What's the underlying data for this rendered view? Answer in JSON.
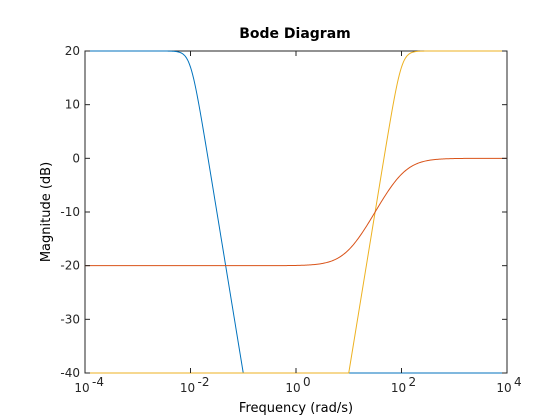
{
  "chart_data": {
    "type": "line",
    "title": "Bode Diagram",
    "xlabel": "Frequency  (rad/s)",
    "ylabel": "Magnitude (dB)",
    "xscale": "log",
    "xlim_exp": [
      -4,
      4
    ],
    "ylim": [
      -40,
      20
    ],
    "grid": false,
    "x_tick_exponents": [
      -4,
      -2,
      0,
      2,
      4
    ],
    "x_tick_base": "10",
    "y_ticks": [
      -40,
      -30,
      -20,
      -10,
      0,
      10,
      20
    ],
    "series": [
      {
        "color": "#0072BD",
        "shape": "lowpass",
        "low_db": 20,
        "high_db": -40,
        "corner_exp": -2,
        "slope_db_per_decade": -20
      },
      {
        "color": "#EDB120",
        "shape": "highpass",
        "low_db": -40,
        "high_db": 20,
        "corner_exp": 2,
        "slope_db_per_decade": 20
      },
      {
        "color": "#D95319",
        "shape": "shelf",
        "low_db": -20,
        "high_db": 0,
        "zero_exp": 1,
        "pole_exp": 2
      }
    ]
  }
}
